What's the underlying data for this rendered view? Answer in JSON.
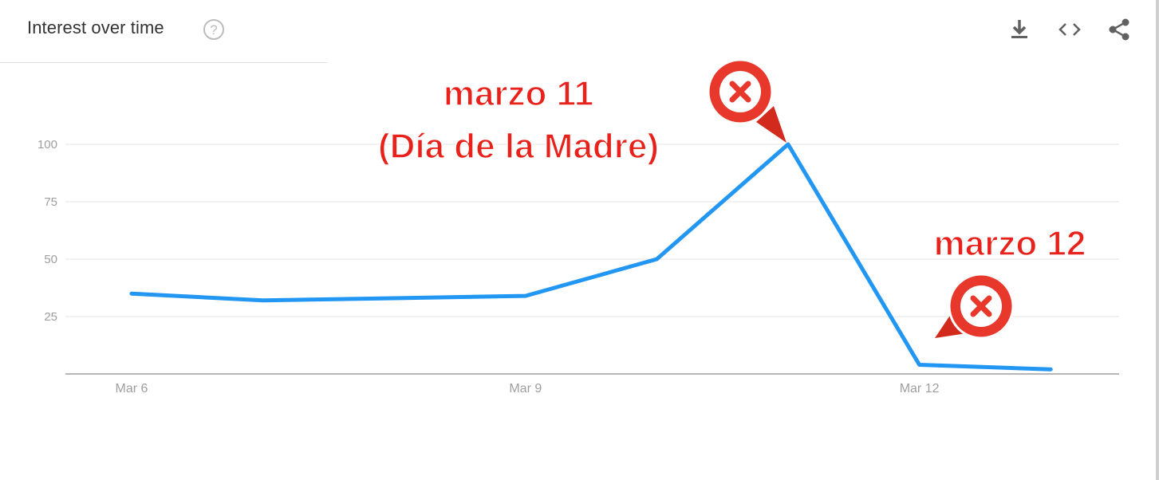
{
  "header": {
    "title": "Interest over time",
    "help_icon": "help-circle-icon",
    "actions": [
      {
        "name": "download-icon",
        "label": "download"
      },
      {
        "name": "embed-icon",
        "label": "embed"
      },
      {
        "name": "share-icon",
        "label": "share"
      }
    ]
  },
  "colors": {
    "line": "#2196f3",
    "annotation": "#e8211a",
    "grid": "#e5e5e5",
    "axis": "#9e9e9e",
    "tick_text": "#9e9e9e"
  },
  "annotations": {
    "peak_line1": "marzo 11",
    "peak_line2": "(Día de la Madre)",
    "low_label": "marzo 12",
    "marker_icon": "map-pin-x-icon"
  },
  "chart_data": {
    "type": "line",
    "title": "Interest over time",
    "x": [
      "2018-03-06",
      "2018-03-07",
      "2018-03-08",
      "2018-03-09",
      "2018-03-10",
      "2018-03-11",
      "2018-03-12",
      "2018-03-13"
    ],
    "x_tick_labels": [
      {
        "label": "Mar 6",
        "index": 0
      },
      {
        "label": "Mar 9",
        "index": 3
      },
      {
        "label": "Mar 12",
        "index": 6
      }
    ],
    "y_ticks": [
      25,
      50,
      75,
      100
    ],
    "series": [
      {
        "values": [
          35,
          32,
          33,
          34,
          50,
          100,
          4,
          2
        ]
      }
    ],
    "ylim": [
      0,
      100
    ],
    "grid": true,
    "legend": "none"
  }
}
